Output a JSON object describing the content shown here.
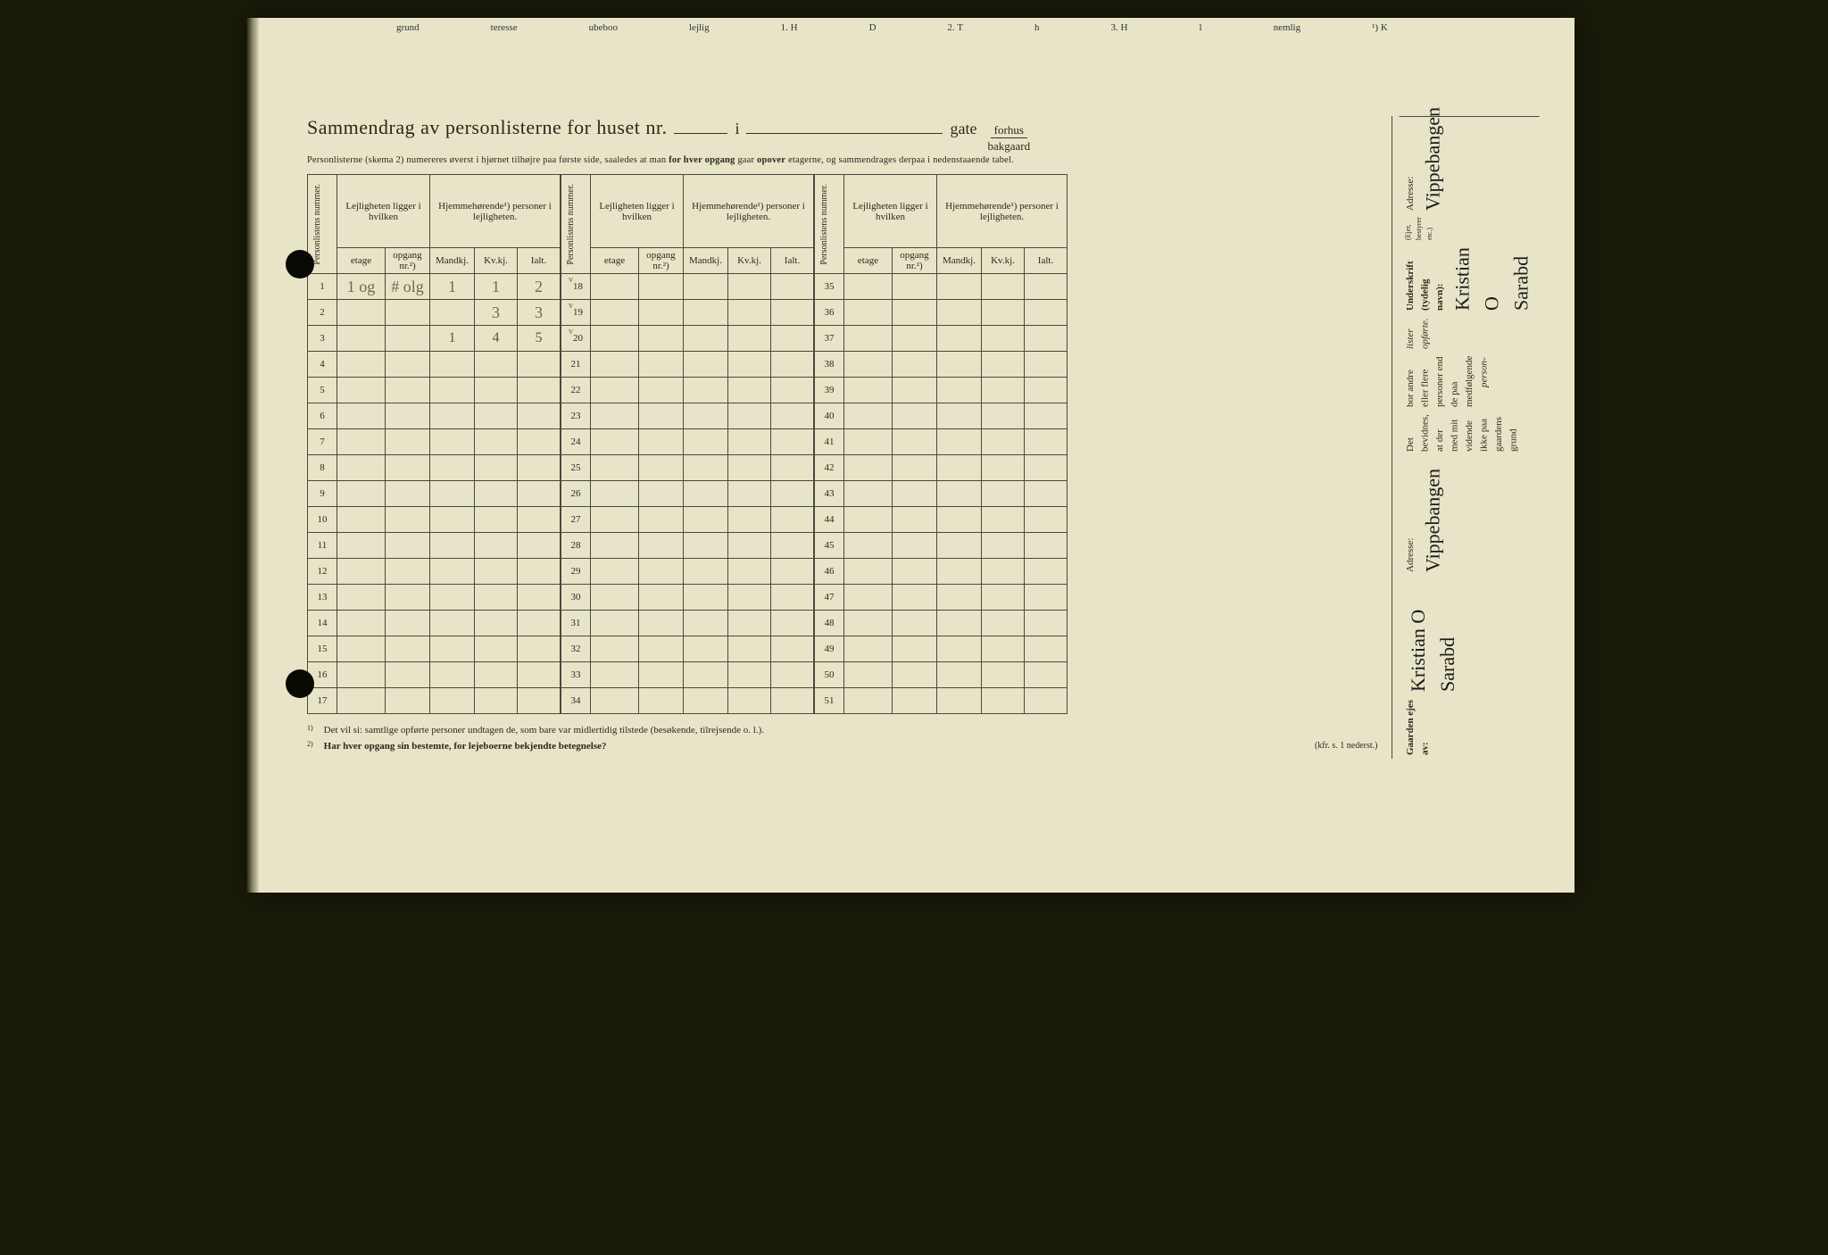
{
  "top_fragments": [
    "grund",
    "teresse",
    "ubeboo",
    "lejlig",
    "1. H",
    "D",
    "2. T",
    "h",
    "3. H",
    "l",
    "nemlig",
    "¹) K"
  ],
  "title": {
    "main": "Sammendrag av personlisterne for huset nr.",
    "i": "i",
    "gate": "gate",
    "frac_top": "forhus",
    "frac_bot": "bakgaard"
  },
  "subtitle_parts": {
    "a": "Personlisterne (skema 2) numereres øverst i hjørnet tilhøjre paa første side, saaledes at man ",
    "b": "for hver opgang",
    "c": " gaar ",
    "d": "opover",
    "e": " etagerne, og sammendrages derpaa i nedenstaaende tabel."
  },
  "headers": {
    "personlist": "Personlistens nummer.",
    "lejlighet": "Lejligheten ligger i hvilken",
    "hjemme": "Hjemmehørende¹) personer i lejligheten.",
    "etage": "etage",
    "opgang": "opgang nr.²)",
    "mandkj": "Mandkj.",
    "kvkj": "Kv.kj.",
    "ialt": "Ialt."
  },
  "blocks": [
    {
      "start": 1,
      "rows": [
        {
          "n": "1",
          "etage": "1 og",
          "opg": "# olg",
          "m": "1",
          "k": "1",
          "i": "2",
          "tick": ""
        },
        {
          "n": "2",
          "etage": "",
          "opg": "",
          "m": "",
          "k": "3",
          "i": "3",
          "tick": ""
        },
        {
          "n": "3",
          "etage": "",
          "opg": "",
          "m": "1",
          "k": "4",
          "i": "5",
          "tick": ""
        },
        {
          "n": "4"
        },
        {
          "n": "5"
        },
        {
          "n": "6"
        },
        {
          "n": "7"
        },
        {
          "n": "8"
        },
        {
          "n": "9"
        },
        {
          "n": "10"
        },
        {
          "n": "11"
        },
        {
          "n": "12"
        },
        {
          "n": "13"
        },
        {
          "n": "14"
        },
        {
          "n": "15"
        },
        {
          "n": "16"
        },
        {
          "n": "17"
        }
      ]
    },
    {
      "start": 18,
      "rows": [
        {
          "n": "18",
          "tick": "v"
        },
        {
          "n": "19",
          "tick": "v"
        },
        {
          "n": "20",
          "tick": "v"
        },
        {
          "n": "21"
        },
        {
          "n": "22"
        },
        {
          "n": "23"
        },
        {
          "n": "24"
        },
        {
          "n": "25"
        },
        {
          "n": "26"
        },
        {
          "n": "27"
        },
        {
          "n": "28"
        },
        {
          "n": "29"
        },
        {
          "n": "30"
        },
        {
          "n": "31"
        },
        {
          "n": "32"
        },
        {
          "n": "33"
        },
        {
          "n": "34"
        }
      ]
    },
    {
      "start": 35,
      "rows": [
        {
          "n": "35"
        },
        {
          "n": "36"
        },
        {
          "n": "37"
        },
        {
          "n": "38"
        },
        {
          "n": "39"
        },
        {
          "n": "40"
        },
        {
          "n": "41"
        },
        {
          "n": "42"
        },
        {
          "n": "43"
        },
        {
          "n": "44"
        },
        {
          "n": "45"
        },
        {
          "n": "46"
        },
        {
          "n": "47"
        },
        {
          "n": "48"
        },
        {
          "n": "49"
        },
        {
          "n": "50"
        },
        {
          "n": "51"
        }
      ]
    }
  ],
  "footnotes": {
    "f1": "Det vil si: samtlige opførte personer undtagen de, som bare var midlertidig tilstede (besøkende, tilrejsende o. l.).",
    "f2": "Har hver opgang sin bestemte, for lejeboerne bekjendte betegnelse?",
    "f2_ref": "(kfr. s. 1 nederst.)"
  },
  "side": {
    "upper": {
      "attest_a": "Det bevidnes, at der med mit vidende ikke paa gaardens grund",
      "attest_b": "bor andre eller flere personer end de paa medfølgende",
      "attest_c": "lister opførte.",
      "attest_d": "person-",
      "under_label": "Underskrift (tydelig navn):",
      "under_small": "(Ejer, bestyrer etc.)",
      "sig": "Kristian O Sarabd",
      "adr_label": "Adresse:",
      "adr_val": "Vippebangen"
    },
    "lower": {
      "eies_label": "Gaarden ejes av:",
      "eies_val": "Kristian O Sarabd",
      "adr_label": "Adresse:",
      "adr_val": "Vippebangen"
    }
  }
}
